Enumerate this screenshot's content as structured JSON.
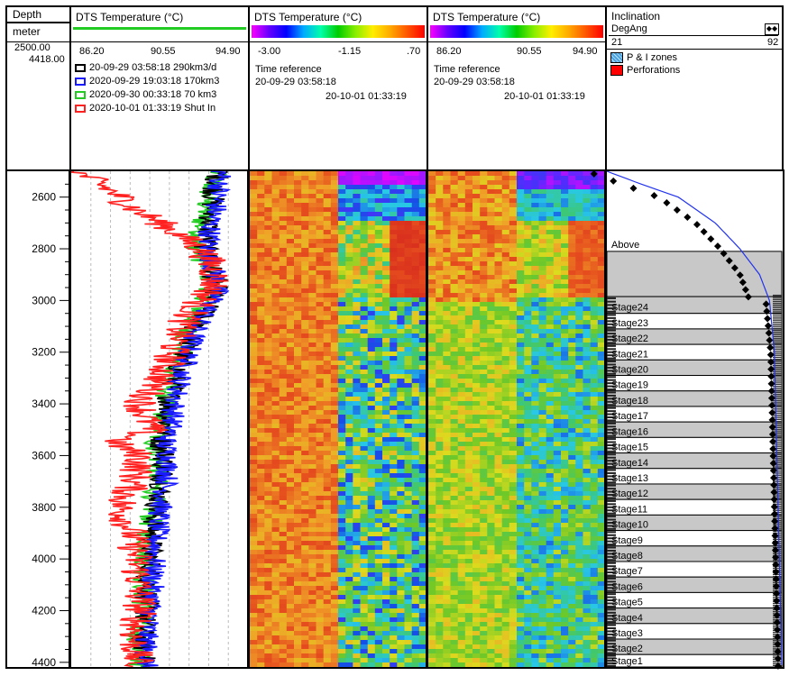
{
  "depth_header": {
    "label": "Depth",
    "unit": "meter",
    "top_value": "2500.00",
    "bottom_value": "4418.00"
  },
  "track1": {
    "title": "DTS Temperature (°C)",
    "scale_min": "86.20",
    "scale_mid": "90.55",
    "scale_max": "94.90",
    "legend": [
      {
        "label": "20-09-29 03:58:18 290km3/d",
        "color": "#000000"
      },
      {
        "label": "2020-09-29 19:03:18 170km3",
        "color": "#1a1aff"
      },
      {
        "label": "2020-09-30 00:33:18 70 km3",
        "color": "#22cc22"
      },
      {
        "label": "2020-10-01 01:33:19 Shut In",
        "color": "#ff2020"
      }
    ]
  },
  "track2": {
    "title": "DTS Temperature (°C)",
    "scale_min": "-3.00",
    "scale_mid": "-1.15",
    "scale_max": ".70",
    "time_ref_label": "Time reference",
    "time_start": "20-09-29 03:58:18",
    "time_end": "20-10-01 01:33:19"
  },
  "track3": {
    "title": "DTS Temperature (°C)",
    "scale_min": "86.20",
    "scale_mid": "90.55",
    "scale_max": "94.90",
    "time_ref_label": "Time reference",
    "time_start": "20-09-29 03:58:18",
    "time_end": "20-10-01 01:33:19"
  },
  "track4": {
    "title": "Inclination",
    "unit": "DegAng",
    "scale_min": "21",
    "scale_max": "92",
    "legend": [
      {
        "label": "P & I zones",
        "color": "#4aa3df"
      },
      {
        "label": "Perforations",
        "color": "#ff0000"
      }
    ],
    "zone_above_label": "Above",
    "stages": [
      "Stage24",
      "Stage23",
      "Stage22",
      "Stage21",
      "Stage20",
      "Stage19",
      "Stage18",
      "Stage17",
      "Stage16",
      "Stage15",
      "Stage14",
      "Stage13",
      "Stage12",
      "Stage11",
      "Stage10",
      "Stage9",
      "Stage8",
      "Stage7",
      "Stage6",
      "Stage5",
      "Stage4",
      "Stage3",
      "Stage2",
      "Stage1"
    ]
  },
  "chart_data": {
    "type": "line",
    "depth_axis": {
      "min": 2500,
      "max": 4418,
      "unit": "meter",
      "ticks": [
        2600,
        2800,
        3000,
        3200,
        3400,
        3600,
        3800,
        4000,
        4200,
        4400
      ]
    },
    "temperature_profiles": {
      "xlim": [
        86.2,
        94.9
      ],
      "depth": [
        2500,
        2550,
        2600,
        2650,
        2700,
        2750,
        2800,
        2850,
        2900,
        2950,
        3000,
        3100,
        3200,
        3300,
        3400,
        3500,
        3550,
        3600,
        3700,
        3800,
        3900,
        4000,
        4100,
        4200,
        4300,
        4400
      ],
      "series": [
        {
          "name": "20-09-29 03:58:18 290km3/d",
          "values": [
            93.5,
            93.3,
            93.2,
            93.1,
            93.0,
            92.9,
            92.8,
            93.0,
            93.2,
            93.3,
            93.1,
            92.3,
            91.8,
            91.3,
            91.0,
            90.9,
            90.6,
            90.8,
            90.7,
            90.4,
            90.2,
            90.1,
            90.0,
            89.9,
            89.7,
            89.8
          ]
        },
        {
          "name": "2020-09-29 19:03:18 170km3",
          "values": [
            93.6,
            93.5,
            93.4,
            93.3,
            93.1,
            93.0,
            92.9,
            93.1,
            93.3,
            93.4,
            93.2,
            92.4,
            92.0,
            91.6,
            91.3,
            91.1,
            90.8,
            91.0,
            90.9,
            90.6,
            90.4,
            90.3,
            90.2,
            90.1,
            89.9,
            89.9
          ]
        },
        {
          "name": "2020-09-30 00:33:18 70 km3",
          "values": [
            93.3,
            93.1,
            92.9,
            92.8,
            92.6,
            92.5,
            92.4,
            92.7,
            93.0,
            93.1,
            92.8,
            92.0,
            91.6,
            91.1,
            90.8,
            90.6,
            90.3,
            90.5,
            90.4,
            90.2,
            90.0,
            89.9,
            89.8,
            89.7,
            89.5,
            89.6
          ]
        },
        {
          "name": "2020-10-01 01:33:19 Shut In",
          "values": [
            86.4,
            87.6,
            88.6,
            89.4,
            90.6,
            91.6,
            92.6,
            93.0,
            93.3,
            93.2,
            92.6,
            91.6,
            91.2,
            90.6,
            89.6,
            90.1,
            88.3,
            89.6,
            89.3,
            88.6,
            89.2,
            89.4,
            89.5,
            89.6,
            89.3,
            89.4
          ]
        }
      ]
    },
    "inclination": {
      "xlim": [
        21,
        92
      ],
      "depth": [
        2500,
        2550,
        2600,
        2700,
        2800,
        2900,
        3000,
        3200,
        3400,
        3600,
        3800,
        4000,
        4200,
        4400
      ],
      "values": [
        21,
        35,
        50,
        65,
        75,
        83,
        87,
        89,
        89.5,
        90,
        90.5,
        91,
        91.5,
        92
      ]
    },
    "stage_zones": {
      "above": [
        2810,
        2985
      ],
      "stage_tops": [
        2985,
        3050,
        3110,
        3170,
        3230,
        3290,
        3350,
        3410,
        3470,
        3530,
        3590,
        3650,
        3710,
        3770,
        3830,
        3890,
        3950,
        4010,
        4070,
        4130,
        4190,
        4250,
        4310,
        4370,
        4418
      ]
    }
  }
}
